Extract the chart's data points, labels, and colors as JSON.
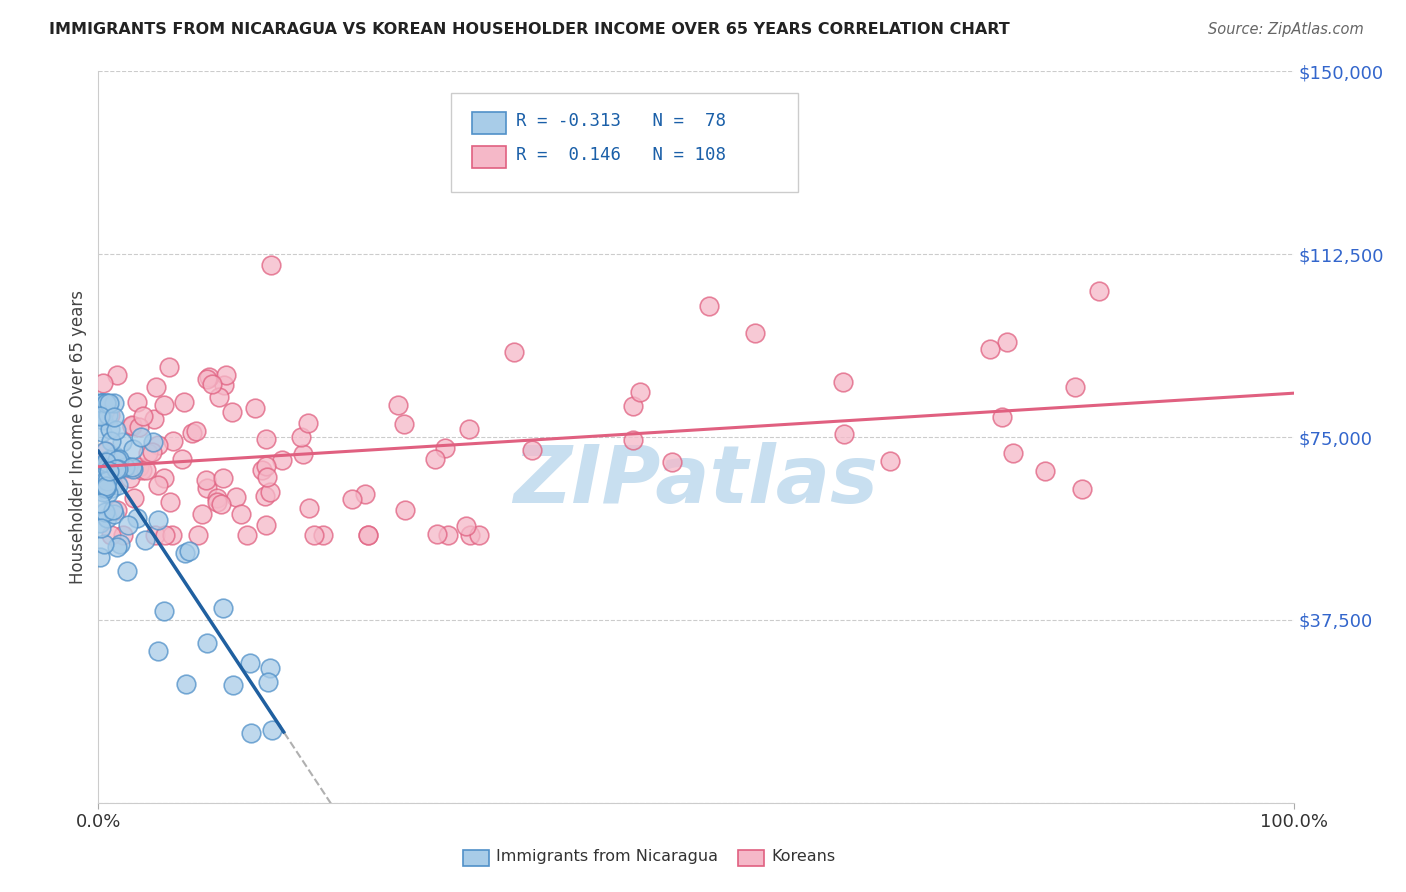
{
  "title": "IMMIGRANTS FROM NICARAGUA VS KOREAN HOUSEHOLDER INCOME OVER 65 YEARS CORRELATION CHART",
  "source": "Source: ZipAtlas.com",
  "ylabel": "Householder Income Over 65 years",
  "r_nicaragua": -0.313,
  "n_nicaragua": 78,
  "r_korean": 0.146,
  "n_korean": 108,
  "color_nicaragua": "#a8cce8",
  "color_korean": "#f5b8c8",
  "edge_color_nicaragua": "#5090c8",
  "edge_color_korean": "#e06080",
  "line_color_nicaragua": "#2060a0",
  "line_color_korean": "#e06080",
  "watermark_color": "#c8dff0",
  "background_color": "#ffffff",
  "ylim": [
    0,
    150000
  ],
  "y_ticks": [
    0,
    37500,
    75000,
    112500,
    150000
  ],
  "y_tick_labels": [
    "",
    "$37,500",
    "$75,000",
    "$112,500",
    "$150,000"
  ],
  "ytick_color": "#3366cc",
  "xtick_color": "#333333",
  "grid_color": "#cccccc",
  "title_color": "#222222",
  "source_color": "#666666",
  "legend_color": "#1a5fa8"
}
